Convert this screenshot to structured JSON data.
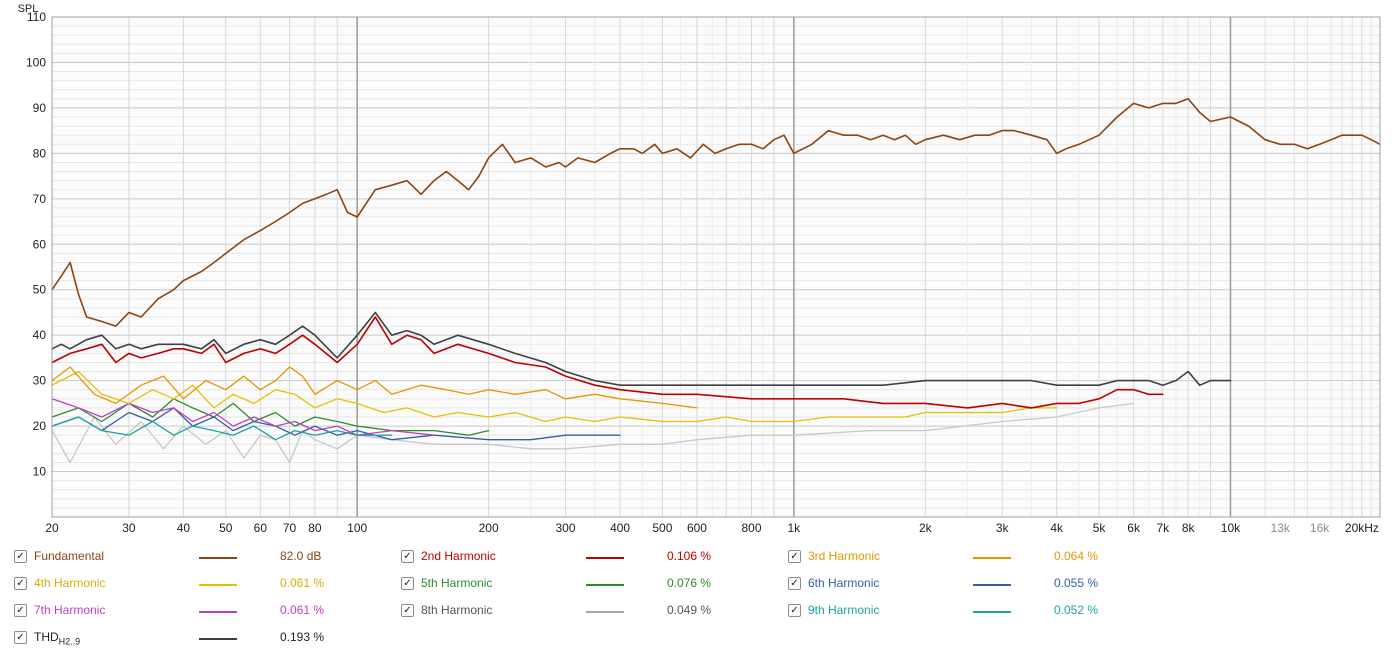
{
  "chart_data": {
    "type": "line",
    "ylabel": "SPL",
    "xscale": "log",
    "xlim": [
      20,
      22000
    ],
    "ylim": [
      0,
      110
    ],
    "x_ticks": [
      {
        "v": 20,
        "label": "20"
      },
      {
        "v": 30,
        "label": "30"
      },
      {
        "v": 40,
        "label": "40"
      },
      {
        "v": 50,
        "label": "50"
      },
      {
        "v": 60,
        "label": "60"
      },
      {
        "v": 70,
        "label": "70"
      },
      {
        "v": 80,
        "label": "80"
      },
      {
        "v": 100,
        "label": "100"
      },
      {
        "v": 200,
        "label": "200"
      },
      {
        "v": 300,
        "label": "300"
      },
      {
        "v": 400,
        "label": "400"
      },
      {
        "v": 500,
        "label": "500"
      },
      {
        "v": 600,
        "label": "600"
      },
      {
        "v": 800,
        "label": "800"
      },
      {
        "v": 1000,
        "label": "1k"
      },
      {
        "v": 2000,
        "label": "2k"
      },
      {
        "v": 3000,
        "label": "3k"
      },
      {
        "v": 4000,
        "label": "4k"
      },
      {
        "v": 5000,
        "label": "5k"
      },
      {
        "v": 6000,
        "label": "6k"
      },
      {
        "v": 7000,
        "label": "7k"
      },
      {
        "v": 8000,
        "label": "8k"
      },
      {
        "v": 10000,
        "label": "10k"
      },
      {
        "v": 13000,
        "label": "13k",
        "dim": true
      },
      {
        "v": 16000,
        "label": "16k",
        "dim": true
      },
      {
        "v": 20000,
        "label": "20kHz"
      }
    ],
    "y_ticks": [
      10,
      20,
      30,
      40,
      50,
      60,
      70,
      80,
      90,
      100,
      110
    ],
    "grid": true,
    "series": [
      {
        "name": "Fundamental",
        "color": "#8b4513",
        "x": [
          20,
          21,
          22,
          23,
          24,
          26,
          28,
          30,
          32,
          35,
          38,
          40,
          44,
          47,
          50,
          55,
          60,
          65,
          70,
          75,
          80,
          85,
          90,
          95,
          100,
          110,
          120,
          130,
          140,
          150,
          160,
          170,
          180,
          190,
          200,
          215,
          230,
          250,
          270,
          290,
          300,
          320,
          350,
          380,
          400,
          430,
          450,
          480,
          500,
          540,
          580,
          620,
          660,
          700,
          750,
          800,
          850,
          900,
          950,
          1000,
          1100,
          1200,
          1300,
          1400,
          1500,
          1600,
          1700,
          1800,
          1900,
          2000,
          2200,
          2400,
          2600,
          2800,
          3000,
          3200,
          3500,
          3800,
          4000,
          4200,
          4500,
          5000,
          5500,
          6000,
          6500,
          7000,
          7500,
          8000,
          8500,
          9000,
          10000,
          11000,
          12000,
          13000,
          14000,
          15000,
          16000,
          17000,
          18000,
          19000,
          20000,
          21000,
          22000
        ],
        "y": [
          50,
          53,
          56,
          49,
          44,
          43,
          42,
          45,
          44,
          48,
          50,
          52,
          54,
          56,
          58,
          61,
          63,
          65,
          67,
          69,
          70,
          71,
          72,
          67,
          66,
          72,
          73,
          74,
          71,
          74,
          76,
          74,
          72,
          75,
          79,
          82,
          78,
          79,
          77,
          78,
          77,
          79,
          78,
          80,
          81,
          81,
          80,
          82,
          80,
          81,
          79,
          82,
          80,
          81,
          82,
          82,
          81,
          83,
          84,
          80,
          82,
          85,
          84,
          84,
          83,
          84,
          83,
          84,
          82,
          83,
          84,
          83,
          84,
          84,
          85,
          85,
          84,
          83,
          80,
          81,
          82,
          84,
          88,
          91,
          90,
          91,
          91,
          92,
          89,
          87,
          88,
          86,
          83,
          82,
          82,
          81,
          82,
          83,
          84,
          84,
          84,
          83,
          82
        ]
      },
      {
        "name": "2nd Harmonic",
        "color": "#c00000",
        "x": [
          20,
          21,
          22,
          24,
          26,
          28,
          30,
          32,
          35,
          38,
          40,
          44,
          47,
          50,
          55,
          60,
          65,
          70,
          75,
          80,
          90,
          100,
          110,
          120,
          130,
          140,
          150,
          170,
          200,
          230,
          270,
          300,
          350,
          400,
          500,
          600,
          800,
          1000,
          1300,
          1600,
          2000,
          2500,
          3000,
          3500,
          4000,
          4500,
          5000,
          5500,
          6000,
          6500,
          7000
        ],
        "y": [
          34,
          35,
          36,
          37,
          38,
          34,
          36,
          35,
          36,
          37,
          37,
          36,
          38,
          34,
          36,
          37,
          36,
          38,
          40,
          38,
          34,
          38,
          44,
          38,
          40,
          39,
          36,
          38,
          36,
          34,
          33,
          31,
          29,
          28,
          27,
          27,
          26,
          26,
          26,
          25,
          25,
          24,
          25,
          24,
          25,
          25,
          26,
          28,
          28,
          27,
          27
        ]
      },
      {
        "name": "3rd Harmonic",
        "color": "#e69500",
        "x": [
          20,
          22,
          25,
          28,
          32,
          36,
          40,
          45,
          50,
          55,
          60,
          65,
          70,
          75,
          80,
          90,
          100,
          110,
          120,
          140,
          160,
          180,
          200,
          230,
          270,
          300,
          350,
          400,
          500,
          600
        ],
        "y": [
          30,
          33,
          27,
          25,
          29,
          31,
          26,
          30,
          28,
          31,
          28,
          30,
          33,
          31,
          27,
          30,
          28,
          30,
          27,
          29,
          28,
          27,
          28,
          27,
          28,
          26,
          27,
          26,
          25,
          24
        ]
      },
      {
        "name": "4th Harmonic",
        "color": "#e6c000",
        "x": [
          20,
          23,
          26,
          30,
          34,
          38,
          42,
          47,
          52,
          58,
          65,
          72,
          80,
          90,
          100,
          115,
          130,
          150,
          170,
          200,
          230,
          270,
          300,
          350,
          400,
          500,
          600,
          700,
          800,
          1000,
          1200,
          1500,
          1800,
          2000,
          2500,
          3000,
          3500,
          4000
        ],
        "y": [
          29,
          32,
          27,
          25,
          28,
          26,
          29,
          24,
          27,
          25,
          28,
          27,
          24,
          26,
          25,
          23,
          24,
          22,
          23,
          22,
          23,
          21,
          22,
          21,
          22,
          21,
          21,
          22,
          21,
          21,
          22,
          22,
          22,
          23,
          23,
          23,
          24,
          24
        ]
      },
      {
        "name": "5th Harmonic",
        "color": "#2e8b2e",
        "x": [
          20,
          23,
          26,
          30,
          34,
          38,
          42,
          47,
          52,
          58,
          65,
          72,
          80,
          90,
          100,
          120,
          150,
          180,
          200
        ],
        "y": [
          22,
          24,
          21,
          25,
          22,
          26,
          24,
          22,
          25,
          21,
          23,
          20,
          22,
          21,
          20,
          19,
          19,
          18,
          19
        ]
      },
      {
        "name": "6th Harmonic",
        "color": "#3060a8",
        "x": [
          20,
          23,
          26,
          30,
          34,
          38,
          42,
          47,
          52,
          58,
          65,
          72,
          80,
          90,
          100,
          120,
          150,
          200,
          250,
          300,
          400
        ],
        "y": [
          20,
          22,
          19,
          23,
          21,
          24,
          20,
          22,
          19,
          21,
          20,
          18,
          20,
          18,
          19,
          17,
          18,
          17,
          17,
          18,
          18
        ]
      },
      {
        "name": "7th Harmonic",
        "color": "#c040c0",
        "x": [
          20,
          23,
          26,
          30,
          34,
          38,
          42,
          47,
          52,
          58,
          65,
          72,
          80,
          90,
          100,
          120,
          150
        ],
        "y": [
          26,
          24,
          22,
          25,
          23,
          24,
          21,
          23,
          20,
          22,
          20,
          21,
          19,
          20,
          18,
          19,
          18
        ]
      },
      {
        "name": "8th Harmonic",
        "color": "#c8c8c8",
        "x": [
          20,
          22,
          25,
          28,
          32,
          36,
          40,
          45,
          50,
          55,
          60,
          65,
          70,
          75,
          80,
          90,
          100,
          120,
          150,
          200,
          250,
          300,
          400,
          500,
          600,
          800,
          1000,
          1500,
          2000,
          3000,
          4000,
          5000,
          6000
        ],
        "y": [
          19,
          12,
          22,
          16,
          21,
          15,
          20,
          16,
          19,
          13,
          18,
          17,
          12,
          19,
          17,
          15,
          18,
          17,
          16,
          16,
          15,
          15,
          16,
          16,
          17,
          18,
          18,
          19,
          19,
          21,
          22,
          24,
          25
        ]
      },
      {
        "name": "9th Harmonic",
        "color": "#20a0a0",
        "x": [
          20,
          23,
          26,
          30,
          34,
          38,
          42,
          47,
          52,
          58,
          65,
          72,
          80,
          90,
          100,
          120
        ],
        "y": [
          20,
          22,
          19,
          18,
          21,
          18,
          20,
          19,
          18,
          20,
          17,
          19,
          18,
          19,
          18,
          18
        ]
      },
      {
        "name": "THD",
        "color": "#404040",
        "x": [
          20,
          21,
          22,
          24,
          26,
          28,
          30,
          32,
          35,
          38,
          40,
          44,
          47,
          50,
          55,
          60,
          65,
          70,
          75,
          80,
          90,
          100,
          110,
          120,
          130,
          140,
          150,
          170,
          200,
          230,
          270,
          300,
          350,
          400,
          500,
          600,
          800,
          1000,
          1300,
          1600,
          2000,
          2500,
          3000,
          3500,
          4000,
          4500,
          5000,
          5500,
          6000,
          6500,
          7000,
          7500,
          8000,
          8500,
          9000,
          10000
        ],
        "y": [
          37,
          38,
          37,
          39,
          40,
          37,
          38,
          37,
          38,
          38,
          38,
          37,
          39,
          36,
          38,
          39,
          38,
          40,
          42,
          40,
          35,
          40,
          45,
          40,
          41,
          40,
          38,
          40,
          38,
          36,
          34,
          32,
          30,
          29,
          29,
          29,
          29,
          29,
          29,
          29,
          30,
          30,
          30,
          30,
          29,
          29,
          29,
          30,
          30,
          30,
          29,
          30,
          32,
          29,
          30,
          30
        ]
      }
    ]
  },
  "legend": [
    {
      "name": "Fundamental",
      "sub": "",
      "value": "82.0 dB",
      "color": "#8b4513",
      "textColor": "#8b4513",
      "checked": "✓"
    },
    {
      "name": "2nd Harmonic",
      "sub": "",
      "value": "0.106 %",
      "color": "#c00000",
      "textColor": "#c00000",
      "checked": "✓"
    },
    {
      "name": "3rd Harmonic",
      "sub": "",
      "value": "0.064 %",
      "color": "#e69500",
      "textColor": "#e69500",
      "checked": "✓"
    },
    {
      "name": "4th Harmonic",
      "sub": "",
      "value": "0.061 %",
      "color": "#e6c000",
      "textColor": "#d4b000",
      "checked": "✓"
    },
    {
      "name": "5th Harmonic",
      "sub": "",
      "value": "0.076 %",
      "color": "#2e8b2e",
      "textColor": "#2e8b2e",
      "checked": "✓"
    },
    {
      "name": "6th Harmonic",
      "sub": "",
      "value": "0.055 %",
      "color": "#3060a8",
      "textColor": "#3060a8",
      "checked": "✓"
    },
    {
      "name": "7th Harmonic",
      "sub": "",
      "value": "0.061 %",
      "color": "#c040c0",
      "textColor": "#c040c0",
      "checked": "✓"
    },
    {
      "name": "8th Harmonic",
      "sub": "",
      "value": "0.049 %",
      "color": "#a8a8a8",
      "textColor": "#555555",
      "checked": "✓"
    },
    {
      "name": "9th Harmonic",
      "sub": "",
      "value": "0.052 %",
      "color": "#20a0a0",
      "textColor": "#20a0a0",
      "checked": "✓"
    },
    {
      "name": "THD",
      "sub": "H2..9",
      "value": "0.193 %",
      "color": "#404040",
      "textColor": "#222222",
      "checked": "✓"
    }
  ]
}
